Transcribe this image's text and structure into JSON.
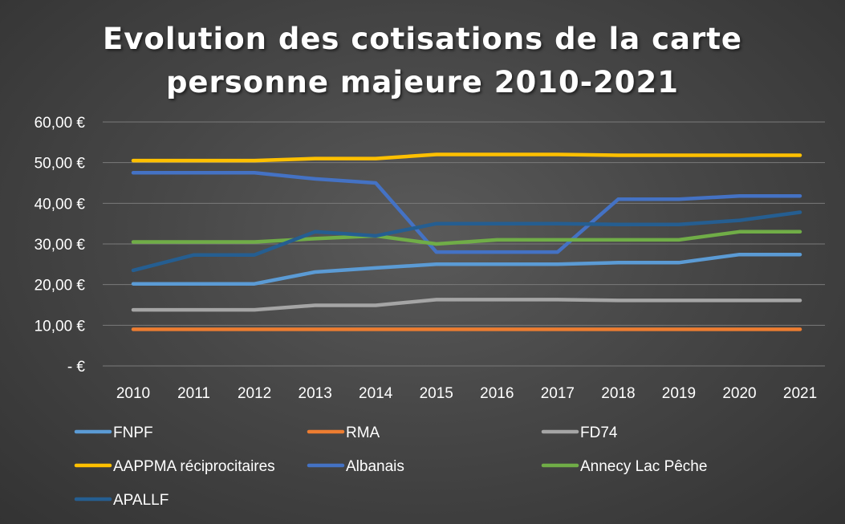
{
  "chart_data": {
    "type": "line",
    "title_lines": [
      "Evolution des cotisations de la carte",
      "personne majeure 2010-2021"
    ],
    "xlabel": "",
    "ylabel": "",
    "categories": [
      "2010",
      "2011",
      "2012",
      "2013",
      "2014",
      "2015",
      "2016",
      "2017",
      "2018",
      "2019",
      "2020",
      "2021"
    ],
    "y_tick_labels": [
      "-   €",
      "10,00 €",
      "20,00 €",
      "30,00 €",
      "40,00 €",
      "50,00 €",
      "60,00 €"
    ],
    "ylim": [
      0,
      60
    ],
    "grid": true,
    "legend_position": "bottom",
    "series": [
      {
        "name": "FNPF",
        "color": "#5b9bd5",
        "values": [
          20.2,
          20.2,
          20.2,
          23.1,
          24.1,
          25.0,
          25.0,
          25.0,
          25.4,
          25.4,
          27.4,
          27.4
        ]
      },
      {
        "name": "RMA",
        "color": "#ed7d31",
        "values": [
          9.0,
          9.0,
          9.0,
          9.0,
          9.0,
          9.0,
          9.0,
          9.0,
          9.0,
          9.0,
          9.0,
          9.0
        ]
      },
      {
        "name": "FD74",
        "color": "#a5a5a5",
        "values": [
          13.8,
          13.8,
          13.8,
          14.9,
          14.9,
          16.3,
          16.3,
          16.3,
          16.1,
          16.1,
          16.1,
          16.1
        ]
      },
      {
        "name": "AAPPMA réciprocitaires",
        "color": "#ffc000",
        "values": [
          50.5,
          50.5,
          50.5,
          51.0,
          51.0,
          52.0,
          52.0,
          52.0,
          51.8,
          51.8,
          51.8,
          51.8
        ]
      },
      {
        "name": "Albanais",
        "color": "#4472c4",
        "values": [
          47.5,
          47.5,
          47.5,
          46.0,
          45.0,
          28.0,
          28.0,
          28.0,
          41.0,
          41.0,
          41.8,
          41.8
        ]
      },
      {
        "name": "Annecy Lac Pêche",
        "color": "#70ad47",
        "values": [
          30.5,
          30.5,
          30.5,
          31.3,
          32.0,
          30.0,
          31.0,
          31.0,
          31.0,
          31.0,
          33.0,
          33.0
        ]
      },
      {
        "name": "APALLF",
        "color": "#255e91",
        "values": [
          23.5,
          27.3,
          27.3,
          33.0,
          32.0,
          35.0,
          35.0,
          35.0,
          34.8,
          34.8,
          35.8,
          37.8
        ]
      }
    ]
  }
}
